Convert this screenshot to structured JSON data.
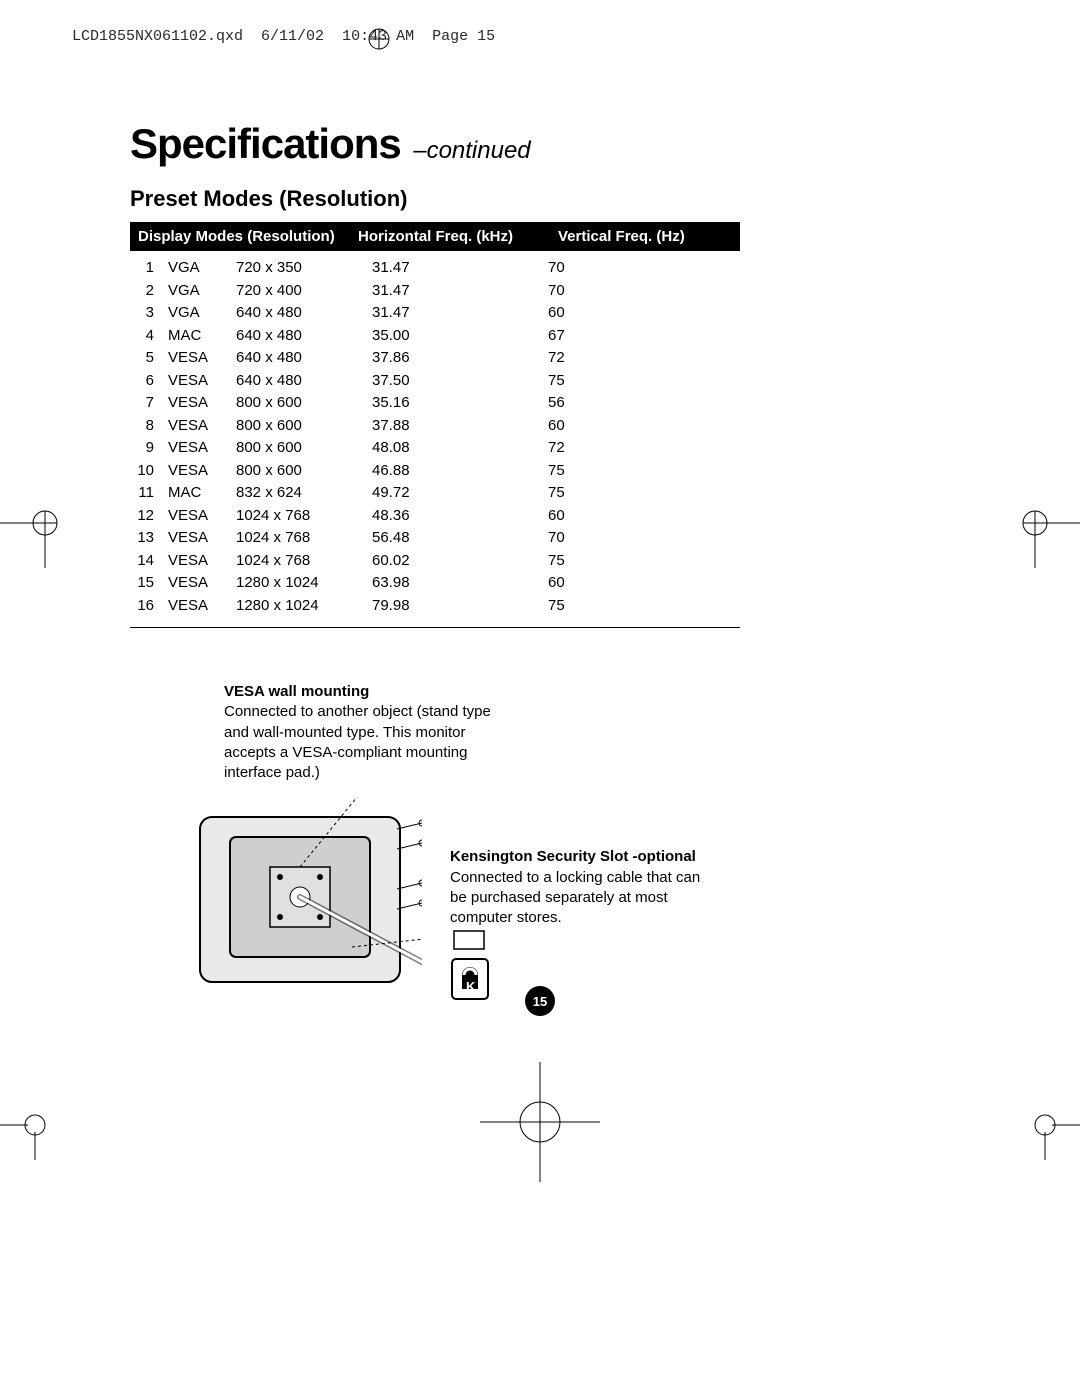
{
  "header": {
    "filename": "LCD1855NX061102.qxd",
    "date": "6/11/02",
    "time": "10:43 AM",
    "page_ref": "Page 15"
  },
  "title": {
    "main": "Specifications",
    "suffix": "–continued"
  },
  "subtitle": "Preset Modes (Resolution)",
  "table": {
    "headers": {
      "modes": "Display Modes (Resolution)",
      "hfreq": "Horizontal Freq. (kHz)",
      "vfreq": "Vertical Freq. (Hz)"
    },
    "rows": [
      {
        "idx": "1",
        "std": "VGA",
        "res": "720 x 350",
        "hf": "31.47",
        "vf": "70"
      },
      {
        "idx": "2",
        "std": "VGA",
        "res": "720 x 400",
        "hf": "31.47",
        "vf": "70"
      },
      {
        "idx": "3",
        "std": "VGA",
        "res": "640 x 480",
        "hf": "31.47",
        "vf": "60"
      },
      {
        "idx": "4",
        "std": "MAC",
        "res": "640 x 480",
        "hf": "35.00",
        "vf": "67"
      },
      {
        "idx": "5",
        "std": "VESA",
        "res": "640 x 480",
        "hf": "37.86",
        "vf": "72"
      },
      {
        "idx": "6",
        "std": "VESA",
        "res": "640 x 480",
        "hf": "37.50",
        "vf": "75"
      },
      {
        "idx": "7",
        "std": "VESA",
        "res": "800 x 600",
        "hf": "35.16",
        "vf": "56"
      },
      {
        "idx": "8",
        "std": "VESA",
        "res": "800 x 600",
        "hf": "37.88",
        "vf": "60"
      },
      {
        "idx": "9",
        "std": "VESA",
        "res": "800 x 600",
        "hf": "48.08",
        "vf": "72"
      },
      {
        "idx": "10",
        "std": "VESA",
        "res": "800 x 600",
        "hf": "46.88",
        "vf": "75"
      },
      {
        "idx": "11",
        "std": "MAC",
        "res": "832 x 624",
        "hf": "49.72",
        "vf": "75"
      },
      {
        "idx": "12",
        "std": "VESA",
        "res": "1024 x 768",
        "hf": "48.36",
        "vf": "60"
      },
      {
        "idx": "13",
        "std": "VESA",
        "res": "1024 x 768",
        "hf": "56.48",
        "vf": "70"
      },
      {
        "idx": "14",
        "std": "VESA",
        "res": "1024 x 768",
        "hf": "60.02",
        "vf": "75"
      },
      {
        "idx": "15",
        "std": "VESA",
        "res": "1280 x 1024",
        "hf": "63.98",
        "vf": "60"
      },
      {
        "idx": "16",
        "std": "VESA",
        "res": "1280 x 1024",
        "hf": "79.98",
        "vf": "75"
      }
    ]
  },
  "features": {
    "vesa": {
      "title": "VESA wall mounting",
      "body": "Connected to another object (stand type and wall-mounted type. This monitor accepts a VESA-compliant mounting interface pad.)"
    },
    "kensington": {
      "title": "Kensington Security Slot -optional",
      "body": "Connected to a locking cable that can be purchased separately at most computer stores."
    }
  },
  "page_number": "15",
  "colors": {
    "header_bg": "#000000",
    "header_fg": "#ffffff",
    "text": "#000000",
    "page_bg": "#ffffff"
  },
  "typography": {
    "title_fontsize_pt": 32,
    "subtitle_fontsize_pt": 16,
    "body_fontsize_pt": 11,
    "mono_font": "Courier New"
  }
}
